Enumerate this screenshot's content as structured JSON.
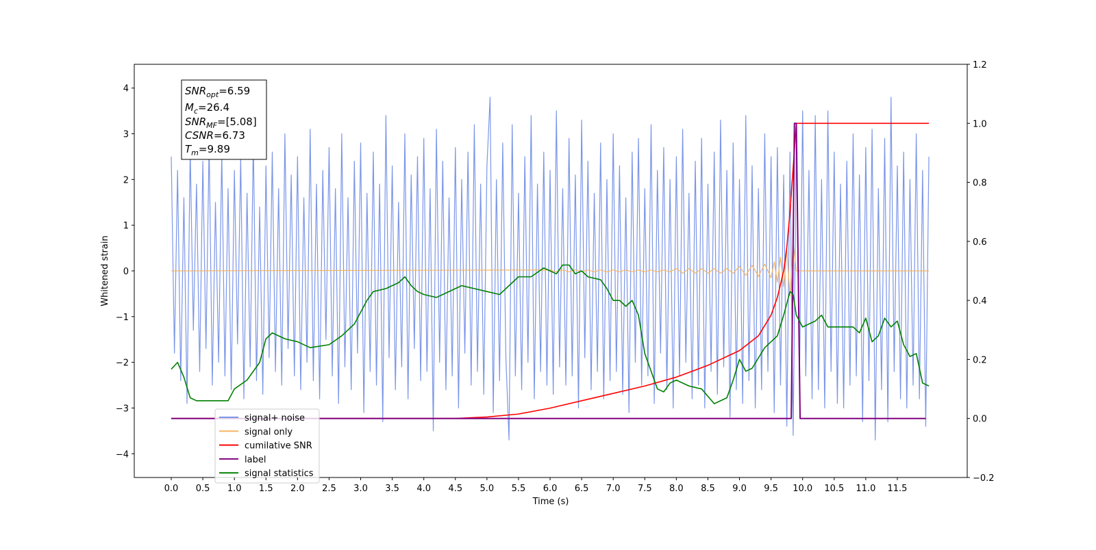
{
  "chart_data": {
    "type": "line",
    "xlabel": "Time (s)",
    "ylabel": "Whitened strain",
    "xlim": [
      -0.586,
      12.607
    ],
    "ylim": [
      -4.52,
      4.52
    ],
    "y2lim": [
      -0.2,
      1.2
    ],
    "xticks": [
      {
        "value": 0,
        "label": "0.0"
      },
      {
        "value": 0.5,
        "label": "0.5"
      },
      {
        "value": 1,
        "label": "1.0"
      },
      {
        "value": 1.5,
        "label": "1.5"
      },
      {
        "value": 2,
        "label": "2.0"
      },
      {
        "value": 2.5,
        "label": "2.5"
      },
      {
        "value": 3,
        "label": "3.0"
      },
      {
        "value": 3.5,
        "label": "3.5"
      },
      {
        "value": 4,
        "label": "4.0"
      },
      {
        "value": 4.5,
        "label": "4.5"
      },
      {
        "value": 5,
        "label": "5.0"
      },
      {
        "value": 5.5,
        "label": "5.5"
      },
      {
        "value": 6,
        "label": "6.0"
      },
      {
        "value": 6.5,
        "label": "6.5"
      },
      {
        "value": 7,
        "label": "7.0"
      },
      {
        "value": 7.5,
        "label": "7.5"
      },
      {
        "value": 8,
        "label": "8.0"
      },
      {
        "value": 8.5,
        "label": "8.5"
      },
      {
        "value": 9,
        "label": "9.0"
      },
      {
        "value": 9.5,
        "label": "9.5"
      },
      {
        "value": 10,
        "label": "10.0"
      },
      {
        "value": 10.5,
        "label": "10.5"
      },
      {
        "value": 11,
        "label": "11.0"
      },
      {
        "value": 11.5,
        "label": "11.5"
      }
    ],
    "yticks": [
      {
        "value": -4,
        "label": "−4"
      },
      {
        "value": -3,
        "label": "−3"
      },
      {
        "value": -2,
        "label": "−2"
      },
      {
        "value": -1,
        "label": "−1"
      },
      0,
      1,
      2,
      3,
      4
    ],
    "y2ticks": [
      {
        "value": -0.2,
        "label": "−0.2"
      },
      {
        "value": 0,
        "label": "0.0"
      },
      {
        "value": 0.2,
        "label": "0.2"
      },
      {
        "value": 0.4,
        "label": "0.4"
      },
      {
        "value": 0.6,
        "label": "0.6"
      },
      {
        "value": 0.8,
        "label": "0.8"
      },
      {
        "value": 1,
        "label": "1.0"
      },
      {
        "value": 1.2,
        "label": "1.2"
      }
    ],
    "grid": false,
    "legend": "lower left",
    "annotation": [
      {
        "symbol": "SNR",
        "subscript": "opt",
        "text": "=6.59"
      },
      {
        "symbol": "M",
        "subscript": "c",
        "text": "=26.4"
      },
      {
        "symbol": "SNR",
        "subscript": "MF",
        "text": "=[5.08]"
      },
      {
        "symbol": "CSNR",
        "text": "=6.73"
      },
      {
        "symbol": "T",
        "subscript": "m",
        "text": "=9.89"
      }
    ],
    "series": [
      {
        "name": "signal+ noise",
        "color": "#7a95e8",
        "axis": "y",
        "x": [
          0,
          0.05,
          0.1,
          0.15,
          0.2,
          0.25,
          0.3,
          0.35,
          0.4,
          0.45,
          0.5,
          0.55,
          0.6,
          0.65,
          0.7,
          0.75,
          0.8,
          0.85,
          0.9,
          0.95,
          1,
          1.05,
          1.1,
          1.15,
          1.2,
          1.25,
          1.3,
          1.35,
          1.4,
          1.45,
          1.5,
          1.55,
          1.6,
          1.65,
          1.7,
          1.75,
          1.8,
          1.85,
          1.9,
          1.95,
          2,
          2.05,
          2.1,
          2.15,
          2.2,
          2.25,
          2.3,
          2.35,
          2.4,
          2.45,
          2.5,
          2.55,
          2.6,
          2.65,
          2.7,
          2.75,
          2.8,
          2.85,
          2.9,
          2.95,
          3,
          3.05,
          3.1,
          3.15,
          3.2,
          3.25,
          3.3,
          3.35,
          3.4,
          3.45,
          3.5,
          3.55,
          3.6,
          3.65,
          3.7,
          3.75,
          3.8,
          3.85,
          3.9,
          3.95,
          4,
          4.05,
          4.1,
          4.15,
          4.2,
          4.25,
          4.3,
          4.35,
          4.4,
          4.45,
          4.5,
          4.55,
          4.6,
          4.65,
          4.7,
          4.75,
          4.8,
          4.85,
          4.9,
          4.95,
          5,
          5.05,
          5.1,
          5.15,
          5.2,
          5.25,
          5.3,
          5.35,
          5.4,
          5.45,
          5.5,
          5.55,
          5.6,
          5.65,
          5.7,
          5.75,
          5.8,
          5.85,
          5.9,
          5.95,
          6,
          6.05,
          6.1,
          6.15,
          6.2,
          6.25,
          6.3,
          6.35,
          6.4,
          6.45,
          6.5,
          6.55,
          6.6,
          6.65,
          6.7,
          6.75,
          6.8,
          6.85,
          6.9,
          6.95,
          7,
          7.05,
          7.1,
          7.15,
          7.2,
          7.25,
          7.3,
          7.35,
          7.4,
          7.45,
          7.5,
          7.55,
          7.6,
          7.65,
          7.7,
          7.75,
          7.8,
          7.85,
          7.9,
          7.95,
          8,
          8.05,
          8.1,
          8.15,
          8.2,
          8.25,
          8.3,
          8.35,
          8.4,
          8.45,
          8.5,
          8.55,
          8.6,
          8.65,
          8.7,
          8.75,
          8.8,
          8.85,
          8.9,
          8.95,
          9,
          9.05,
          9.1,
          9.15,
          9.2,
          9.25,
          9.3,
          9.35,
          9.4,
          9.45,
          9.5,
          9.55,
          9.6,
          9.65,
          9.7,
          9.75,
          9.8,
          9.85,
          9.9,
          9.95,
          10,
          10.05,
          10.1,
          10.15,
          10.2,
          10.25,
          10.3,
          10.35,
          10.4,
          10.45,
          10.5,
          10.55,
          10.6,
          10.65,
          10.7,
          10.75,
          10.8,
          10.85,
          10.9,
          10.95,
          11,
          11.05,
          11.1,
          11.15,
          11.2,
          11.25,
          11.3,
          11.35,
          11.4,
          11.45,
          11.5,
          11.55,
          11.6,
          11.65,
          11.7,
          11.75,
          11.8,
          11.85,
          11.9,
          11.95,
          12
        ],
        "values": [
          2.5,
          -1.8,
          2.2,
          -2.4,
          1.6,
          -2.9,
          2.7,
          -1.3,
          1.9,
          -2.2,
          2.4,
          -1.7,
          2.8,
          -2.5,
          1.5,
          -2.0,
          2.6,
          -2.3,
          1.8,
          -2.6,
          2.2,
          -1.6,
          2.5,
          -2.8,
          1.7,
          -2.1,
          2.9,
          -2.4,
          1.4,
          -2.7,
          2.3,
          -1.9,
          2.6,
          -2.2,
          1.8,
          -2.5,
          3.0,
          -1.7,
          2.1,
          -2.3,
          2.5,
          -2.6,
          1.6,
          -2.0,
          3.1,
          -2.4,
          1.9,
          -2.8,
          2.2,
          -1.5,
          2.7,
          -2.3,
          1.8,
          -2.9,
          3.0,
          -2.1,
          1.6,
          -2.6,
          2.4,
          -1.8,
          2.8,
          -3.1,
          1.7,
          -2.2,
          2.6,
          -2.5,
          1.9,
          -3.3,
          3.4,
          -1.9,
          2.3,
          -2.6,
          1.5,
          -2.1,
          3.0,
          -2.8,
          2.1,
          -1.7,
          2.5,
          -2.4,
          2.9,
          -2.2,
          1.8,
          -3.5,
          3.1,
          -2.0,
          2.4,
          -2.6,
          1.6,
          -2.3,
          2.7,
          -3.0,
          2.0,
          -1.8,
          2.6,
          -2.5,
          3.2,
          -2.2,
          1.9,
          -2.7,
          2.3,
          3.8,
          -3.1,
          2.0,
          -2.4,
          2.8,
          -1.9,
          -3.7,
          3.2,
          -2.3,
          1.7,
          -2.6,
          2.5,
          -2.0,
          3.4,
          -2.8,
          1.9,
          -2.2,
          2.6,
          -2.5,
          2.2,
          -2.7,
          3.5,
          -2.1,
          1.8,
          -2.5,
          2.9,
          -2.3,
          2.1,
          -3.0,
          3.3,
          -1.9,
          2.4,
          -2.6,
          1.7,
          -2.2,
          2.8,
          -2.8,
          2.0,
          -2.4,
          3.0,
          -2.2,
          2.3,
          -2.7,
          1.6,
          -3.1,
          2.6,
          -2.0,
          2.9,
          -2.5,
          1.8,
          -2.3,
          3.2,
          -2.9,
          2.2,
          -1.8,
          2.7,
          -2.6,
          2.0,
          -3.0,
          2.5,
          -2.3,
          3.1,
          -2.0,
          1.7,
          -2.8,
          2.4,
          -2.5,
          2.9,
          -3.0,
          1.9,
          -2.2,
          2.6,
          -2.7,
          3.3,
          -2.1,
          2.2,
          -3.2,
          2.8,
          -2.6,
          2.0,
          -2.9,
          3.4,
          -2.4,
          2.3,
          -3.0,
          1.8,
          -2.6,
          3.0,
          -2.2,
          2.5,
          -3.1,
          2.7,
          -2.5,
          2.1,
          -3.4,
          2.6,
          -3.6,
          2.9,
          -2.4,
          3.5,
          -2.3,
          2.2,
          -2.8,
          3.4,
          -2.6,
          2.0,
          -3.0,
          3.5,
          -2.2,
          2.6,
          -2.9,
          1.9,
          -3.0,
          2.4,
          -2.5,
          3.0,
          -2.3,
          2.1,
          -3.3,
          2.7,
          -2.4,
          3.1,
          -3.7,
          1.8,
          -2.6,
          2.9,
          -3.3,
          3.8,
          -2.2,
          2.3,
          -2.8,
          2.6,
          -3.0,
          2.0,
          -2.5,
          3.0,
          -2.8,
          2.2,
          -3.4,
          2.5
        ]
      },
      {
        "name": "signal only",
        "color": "#f5b461",
        "axis": "y",
        "x": [
          0,
          6,
          6.1,
          6.2,
          6.3,
          6.4,
          6.5,
          6.6,
          6.7,
          6.8,
          6.9,
          7,
          7.1,
          7.2,
          7.3,
          7.4,
          7.5,
          7.6,
          7.7,
          7.8,
          7.9,
          8,
          8.1,
          8.2,
          8.3,
          8.4,
          8.5,
          8.6,
          8.7,
          8.8,
          8.9,
          9,
          9.1,
          9.2,
          9.3,
          9.4,
          9.5,
          9.55,
          9.6,
          9.65,
          9.7,
          9.75,
          9.8,
          9.85,
          9.9,
          12
        ],
        "values": [
          0,
          0.02,
          -0.02,
          0.02,
          -0.02,
          0.02,
          -0.02,
          0.02,
          -0.02,
          0.02,
          -0.02,
          0.02,
          -0.02,
          0.02,
          -0.02,
          0.02,
          -0.02,
          0.02,
          -0.02,
          0.02,
          -0.02,
          0.05,
          -0.05,
          0.05,
          -0.05,
          0.05,
          -0.05,
          0.05,
          -0.05,
          0.05,
          -0.05,
          0.1,
          -0.1,
          0.12,
          -0.12,
          0.15,
          -0.15,
          0.2,
          -0.25,
          0.3,
          -0.35,
          0.45,
          -0.55,
          0.6,
          0,
          0
        ]
      },
      {
        "name": "cumilative SNR",
        "color": "#ff0000",
        "axis": "y2",
        "x": [
          0,
          4.5,
          5,
          5.5,
          6,
          6.5,
          7,
          7.5,
          8,
          8.5,
          9,
          9.3,
          9.5,
          9.6,
          9.7,
          9.75,
          9.8,
          9.85,
          9.9,
          12
        ],
        "values": [
          0,
          0,
          0.005,
          0.015,
          0.035,
          0.06,
          0.085,
          0.11,
          0.14,
          0.18,
          0.23,
          0.28,
          0.35,
          0.41,
          0.5,
          0.58,
          0.7,
          0.85,
          1,
          1
        ]
      },
      {
        "name": "label",
        "color": "#800080",
        "axis": "y2",
        "x": [
          0,
          9.82,
          9.87,
          9.9,
          9.96,
          11.95
        ],
        "values": [
          0,
          0,
          1,
          1,
          0,
          0
        ]
      },
      {
        "name": "signal statistics",
        "color": "#008000",
        "axis": "y2",
        "x": [
          0,
          0.1,
          0.2,
          0.3,
          0.4,
          0.9,
          1,
          1.2,
          1.4,
          1.5,
          1.6,
          1.8,
          2,
          2.2,
          2.5,
          2.7,
          2.9,
          3,
          3.1,
          3.2,
          3.4,
          3.6,
          3.7,
          3.8,
          3.9,
          4,
          4.2,
          4.3,
          4.5,
          4.6,
          4.8,
          5,
          5.2,
          5.4,
          5.5,
          5.7,
          5.9,
          6,
          6.1,
          6.2,
          6.3,
          6.4,
          6.5,
          6.6,
          6.8,
          6.9,
          7,
          7.1,
          7.2,
          7.3,
          7.4,
          7.5,
          7.6,
          7.7,
          7.8,
          7.9,
          8,
          8.2,
          8.4,
          8.6,
          8.8,
          8.9,
          9,
          9.1,
          9.2,
          9.4,
          9.6,
          9.7,
          9.8,
          9.85,
          9.9,
          10,
          10.1,
          10.2,
          10.3,
          10.4,
          10.6,
          10.8,
          10.9,
          11,
          11.1,
          11.2,
          11.3,
          11.4,
          11.5,
          11.6,
          11.7,
          11.8,
          11.9,
          12
        ],
        "values": [
          0.167,
          0.19,
          0.14,
          0.07,
          0.06,
          0.06,
          0.1,
          0.13,
          0.19,
          0.27,
          0.29,
          0.27,
          0.26,
          0.24,
          0.25,
          0.28,
          0.32,
          0.36,
          0.4,
          0.43,
          0.44,
          0.46,
          0.48,
          0.45,
          0.43,
          0.42,
          0.41,
          0.42,
          0.44,
          0.45,
          0.44,
          0.43,
          0.42,
          0.46,
          0.48,
          0.48,
          0.51,
          0.5,
          0.49,
          0.52,
          0.52,
          0.49,
          0.5,
          0.48,
          0.47,
          0.44,
          0.4,
          0.4,
          0.38,
          0.4,
          0.35,
          0.22,
          0.16,
          0.1,
          0.09,
          0.12,
          0.13,
          0.11,
          0.1,
          0.05,
          0.07,
          0.13,
          0.2,
          0.16,
          0.17,
          0.24,
          0.28,
          0.35,
          0.43,
          0.42,
          0.35,
          0.31,
          0.32,
          0.33,
          0.35,
          0.31,
          0.31,
          0.31,
          0.29,
          0.34,
          0.26,
          0.28,
          0.34,
          0.31,
          0.33,
          0.25,
          0.21,
          0.22,
          0.12,
          0.11
        ]
      }
    ]
  }
}
